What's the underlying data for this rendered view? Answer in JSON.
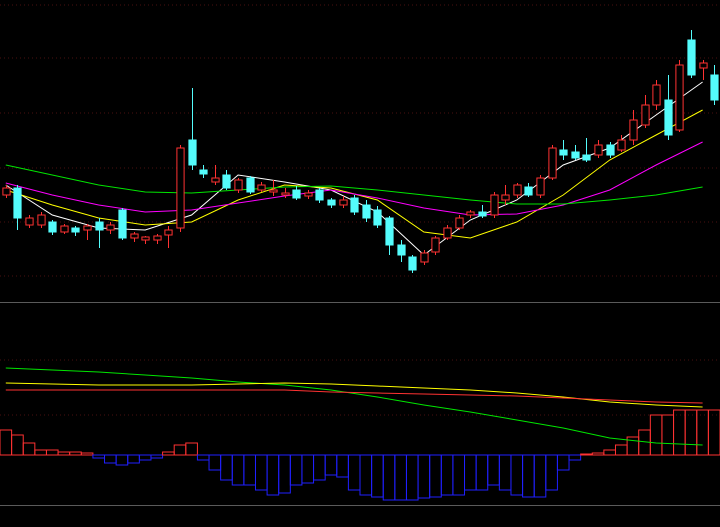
{
  "chart_data": [
    {
      "type": "candlestick",
      "xlim": [
        -0.5,
        61.5
      ],
      "ylim": [
        0,
        30
      ],
      "up_color": "#ff3232",
      "down_color": "#54fcfc",
      "open": [
        10.5,
        11.2,
        7.5,
        7.5,
        7.8,
        6.8,
        7.2,
        7.0,
        7.8,
        7.0,
        9.0,
        6.2,
        6.0,
        6.0,
        6.5,
        7.2,
        16.0,
        13.0,
        11.8,
        12.5,
        11.0,
        12.2,
        11.0,
        10.8,
        10.5,
        11.0,
        10.4,
        11.0,
        10.0,
        9.5,
        10.2,
        9.5,
        9.0,
        8.2,
        5.5,
        4.3,
        3.8,
        4.8,
        6.2,
        7.2,
        8.5,
        8.8,
        8.5,
        10.0,
        10.5,
        11.3,
        10.5,
        12.2,
        15.0,
        14.8,
        14.5,
        14.5,
        15.5,
        15.0,
        16.0,
        17.5,
        19.5,
        20.0,
        17.0,
        26.0,
        23.2,
        22.5
      ],
      "high": [
        11.5,
        11.5,
        8.5,
        8.8,
        8.0,
        7.6,
        7.4,
        7.6,
        8.2,
        7.8,
        9.2,
        6.8,
        6.4,
        6.6,
        7.4,
        15.5,
        21.2,
        13.5,
        13.5,
        13.0,
        12.2,
        12.4,
        11.8,
        12.0,
        11.2,
        11.4,
        11.0,
        11.2,
        10.2,
        10.4,
        10.5,
        10.0,
        9.4,
        8.4,
        6.0,
        4.5,
        5.0,
        6.4,
        7.5,
        8.5,
        9.0,
        9.5,
        10.8,
        11.5,
        11.7,
        11.7,
        12.5,
        15.5,
        16.0,
        15.5,
        16.2,
        16.0,
        15.8,
        16.5,
        19.0,
        20.5,
        22.0,
        22.5,
        24.0,
        27.0,
        24.0,
        23.5
      ],
      "low": [
        10.2,
        7.0,
        7.2,
        7.2,
        6.5,
        6.6,
        6.4,
        6.0,
        5.2,
        6.6,
        6.0,
        5.8,
        5.6,
        5.6,
        5.2,
        6.8,
        13.0,
        12.2,
        11.5,
        11.0,
        10.7,
        10.6,
        10.8,
        10.4,
        10.2,
        10.0,
        10.1,
        9.7,
        9.2,
        9.2,
        8.5,
        7.8,
        7.2,
        4.5,
        3.8,
        2.7,
        3.5,
        4.5,
        6.0,
        7.0,
        8.2,
        8.2,
        8.2,
        9.5,
        10.2,
        10.3,
        10.2,
        12.0,
        14.0,
        14.0,
        13.8,
        14.2,
        14.2,
        14.8,
        15.5,
        17.2,
        19.0,
        16.0,
        16.8,
        22.2,
        22.0,
        19.5
      ],
      "close": [
        11.2,
        8.2,
        8.2,
        8.5,
        6.8,
        7.4,
        6.8,
        7.4,
        7.0,
        7.5,
        6.2,
        6.6,
        6.3,
        6.4,
        7.0,
        15.2,
        13.5,
        12.6,
        12.2,
        11.2,
        12.0,
        10.8,
        11.5,
        11.0,
        10.7,
        10.2,
        10.7,
        10.0,
        9.5,
        10.0,
        8.8,
        8.2,
        7.5,
        5.5,
        4.5,
        3.0,
        4.7,
        6.2,
        7.2,
        8.2,
        8.8,
        8.4,
        10.5,
        10.5,
        11.5,
        10.5,
        12.2,
        15.2,
        14.5,
        14.2,
        14.0,
        15.5,
        14.5,
        16.0,
        18.0,
        19.5,
        21.5,
        16.5,
        23.5,
        22.5,
        23.7,
        20.0
      ],
      "lines": [
        {
          "color": "#ffffff",
          "x": [
            0,
            4,
            8,
            12,
            16,
            20,
            24,
            28,
            32,
            36,
            40,
            44,
            48,
            52,
            56,
            60
          ],
          "values": [
            11.5,
            8.5,
            7.2,
            7.0,
            8.5,
            12.5,
            11.8,
            11.0,
            8.8,
            4.5,
            8.0,
            10.0,
            13.5,
            15.2,
            18.5,
            21.8
          ]
        },
        {
          "color": "#ffff00",
          "x": [
            0,
            4,
            8,
            12,
            16,
            20,
            24,
            28,
            32,
            36,
            40,
            44,
            48,
            52,
            56,
            60
          ],
          "values": [
            11.0,
            9.5,
            8.2,
            7.5,
            7.8,
            10.0,
            11.5,
            11.2,
            10.0,
            6.8,
            6.2,
            7.8,
            10.5,
            14.0,
            16.5,
            19.0
          ]
        },
        {
          "color": "#ff00ff",
          "x": [
            0,
            4,
            8,
            12,
            16,
            20,
            24,
            28,
            32,
            36,
            40,
            44,
            48,
            52,
            56,
            60
          ],
          "values": [
            11.7,
            10.5,
            9.5,
            8.8,
            9.0,
            9.7,
            10.4,
            11.0,
            10.2,
            9.2,
            8.5,
            8.6,
            9.5,
            11.0,
            13.5,
            15.8
          ]
        },
        {
          "color": "#00e600",
          "x": [
            0,
            4,
            8,
            12,
            16,
            20,
            24,
            28,
            32,
            36,
            40,
            44,
            48,
            52,
            56,
            60
          ],
          "values": [
            13.5,
            12.5,
            11.5,
            10.8,
            10.7,
            11.0,
            11.3,
            11.4,
            11.0,
            10.5,
            10.0,
            9.6,
            9.6,
            10.0,
            10.5,
            11.3
          ]
        }
      ]
    },
    {
      "type": "bar",
      "xlim": [
        -0.5,
        61.5
      ],
      "ylim": [
        -0.5,
        1.5
      ],
      "up_color": "#ff3232",
      "down_color": "#2020ff",
      "values": [
        0.25,
        0.2,
        0.12,
        0.05,
        0.05,
        0.03,
        0.03,
        0.02,
        -0.03,
        -0.08,
        -0.1,
        -0.08,
        -0.05,
        -0.03,
        0.03,
        0.1,
        0.12,
        -0.05,
        -0.15,
        -0.25,
        -0.3,
        -0.3,
        -0.35,
        -0.4,
        -0.38,
        -0.3,
        -0.28,
        -0.25,
        -0.2,
        -0.22,
        -0.35,
        -0.4,
        -0.42,
        -0.45,
        -0.45,
        -0.45,
        -0.43,
        -0.42,
        -0.4,
        -0.4,
        -0.35,
        -0.35,
        -0.3,
        -0.35,
        -0.4,
        -0.42,
        -0.42,
        -0.35,
        -0.15,
        -0.05,
        0.01,
        0.02,
        0.05,
        0.1,
        0.18,
        0.25,
        0.4,
        0.4,
        0.45,
        0.45,
        0.45,
        0.45
      ],
      "lines": [
        {
          "color": "#00e600",
          "x": [
            0,
            4,
            8,
            12,
            16,
            20,
            24,
            28,
            32,
            36,
            40,
            44,
            48,
            52,
            56,
            60
          ],
          "values": [
            0.87,
            0.85,
            0.83,
            0.8,
            0.77,
            0.73,
            0.7,
            0.65,
            0.58,
            0.5,
            0.43,
            0.35,
            0.27,
            0.17,
            0.12,
            0.1
          ]
        },
        {
          "color": "#ffff00",
          "x": [
            0,
            4,
            8,
            12,
            16,
            20,
            24,
            28,
            32,
            36,
            40,
            44,
            48,
            52,
            56,
            60
          ],
          "values": [
            0.72,
            0.71,
            0.7,
            0.7,
            0.7,
            0.71,
            0.72,
            0.71,
            0.69,
            0.67,
            0.65,
            0.62,
            0.58,
            0.53,
            0.5,
            0.48
          ]
        },
        {
          "color": "#ff3232",
          "x": [
            0,
            4,
            8,
            12,
            16,
            20,
            24,
            28,
            32,
            36,
            40,
            44,
            48,
            52,
            56,
            60
          ],
          "values": [
            0.65,
            0.65,
            0.65,
            0.65,
            0.65,
            0.65,
            0.65,
            0.63,
            0.62,
            0.61,
            0.6,
            0.59,
            0.57,
            0.55,
            0.53,
            0.52
          ]
        }
      ]
    }
  ]
}
